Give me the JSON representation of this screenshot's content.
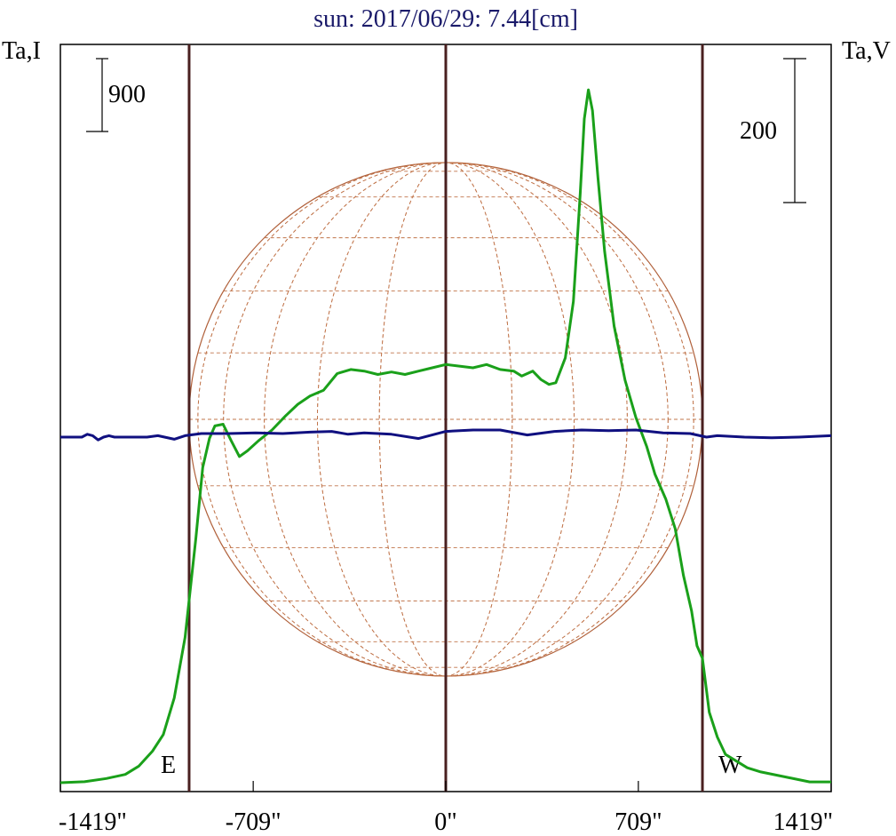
{
  "chart_data": {
    "type": "line",
    "title": "sun: 2017/06/29: 7.44[cm]",
    "ylabel_left": "Ta,I",
    "ylabel_right": "Ta,V",
    "scale_bar_left": "900",
    "scale_bar_right": "200",
    "xlim": [
      -1419,
      1419
    ],
    "x_ticks": [
      {
        "value": -1419,
        "label": "-1419\""
      },
      {
        "value": -709,
        "label": "-709\""
      },
      {
        "value": 0,
        "label": "0\""
      },
      {
        "value": 709,
        "label": "709\""
      },
      {
        "value": 1419,
        "label": "1419\""
      }
    ],
    "limb_markers": [
      {
        "value": -945,
        "label": "E"
      },
      {
        "value": 0,
        "label": ""
      },
      {
        "value": 945,
        "label": "W"
      }
    ],
    "solar_disk_radius_arcsec": 945,
    "series": [
      {
        "role": "intensity",
        "color": "#1aa01a",
        "points": [
          [
            -1419,
            0.0
          ],
          [
            -1330,
            0.012
          ],
          [
            -1250,
            0.05
          ],
          [
            -1180,
            0.1
          ],
          [
            -1130,
            0.2
          ],
          [
            -1080,
            0.38
          ],
          [
            -1040,
            0.58
          ],
          [
            -1000,
            1.02
          ],
          [
            -960,
            1.75
          ],
          [
            -940,
            2.35
          ],
          [
            -920,
            2.95
          ],
          [
            -895,
            3.8
          ],
          [
            -870,
            4.15
          ],
          [
            -850,
            4.3
          ],
          [
            -820,
            4.32
          ],
          [
            -790,
            4.12
          ],
          [
            -760,
            3.93
          ],
          [
            -730,
            4.0
          ],
          [
            -690,
            4.12
          ],
          [
            -640,
            4.25
          ],
          [
            -590,
            4.42
          ],
          [
            -545,
            4.56
          ],
          [
            -500,
            4.66
          ],
          [
            -450,
            4.73
          ],
          [
            -400,
            4.93
          ],
          [
            -350,
            4.98
          ],
          [
            -300,
            4.96
          ],
          [
            -250,
            4.92
          ],
          [
            -200,
            4.95
          ],
          [
            -150,
            4.92
          ],
          [
            -100,
            4.96
          ],
          [
            -50,
            5.0
          ],
          [
            0,
            5.04
          ],
          [
            50,
            5.02
          ],
          [
            100,
            5.0
          ],
          [
            150,
            5.04
          ],
          [
            200,
            4.98
          ],
          [
            250,
            4.96
          ],
          [
            280,
            4.9
          ],
          [
            320,
            4.96
          ],
          [
            350,
            4.86
          ],
          [
            380,
            4.8
          ],
          [
            405,
            4.82
          ],
          [
            440,
            5.12
          ],
          [
            470,
            5.8
          ],
          [
            495,
            7.1
          ],
          [
            510,
            8.0
          ],
          [
            525,
            8.35
          ],
          [
            540,
            8.1
          ],
          [
            560,
            7.3
          ],
          [
            585,
            6.4
          ],
          [
            620,
            5.5
          ],
          [
            660,
            4.85
          ],
          [
            700,
            4.4
          ],
          [
            740,
            4.05
          ],
          [
            770,
            3.72
          ],
          [
            810,
            3.42
          ],
          [
            845,
            3.06
          ],
          [
            875,
            2.5
          ],
          [
            905,
            2.07
          ],
          [
            925,
            1.65
          ],
          [
            945,
            1.5
          ],
          [
            970,
            0.85
          ],
          [
            1000,
            0.55
          ],
          [
            1030,
            0.34
          ],
          [
            1060,
            0.28
          ],
          [
            1110,
            0.18
          ],
          [
            1160,
            0.13
          ],
          [
            1250,
            0.07
          ],
          [
            1340,
            0.01
          ],
          [
            1419,
            0.01
          ]
        ]
      },
      {
        "role": "polarization",
        "color": "#101080",
        "points": [
          [
            -1419,
            0.0
          ],
          [
            -1340,
            0.0
          ],
          [
            -1320,
            0.04
          ],
          [
            -1300,
            0.02
          ],
          [
            -1280,
            -0.04
          ],
          [
            -1260,
            0.0
          ],
          [
            -1240,
            0.02
          ],
          [
            -1220,
            0.0
          ],
          [
            -1100,
            0.0
          ],
          [
            -1060,
            0.02
          ],
          [
            -1000,
            -0.03
          ],
          [
            -960,
            0.02
          ],
          [
            -900,
            0.05
          ],
          [
            -800,
            0.05
          ],
          [
            -700,
            0.06
          ],
          [
            -600,
            0.05
          ],
          [
            -500,
            0.07
          ],
          [
            -420,
            0.08
          ],
          [
            -360,
            0.04
          ],
          [
            -300,
            0.06
          ],
          [
            -200,
            0.04
          ],
          [
            -100,
            -0.02
          ],
          [
            0,
            0.08
          ],
          [
            100,
            0.1
          ],
          [
            200,
            0.1
          ],
          [
            300,
            0.03
          ],
          [
            400,
            0.08
          ],
          [
            500,
            0.1
          ],
          [
            600,
            0.09
          ],
          [
            700,
            0.1
          ],
          [
            800,
            0.06
          ],
          [
            900,
            0.05
          ],
          [
            960,
            0.0
          ],
          [
            1000,
            0.02
          ],
          [
            1100,
            0.0
          ],
          [
            1200,
            -0.01
          ],
          [
            1300,
            0.0
          ],
          [
            1419,
            0.02
          ]
        ]
      }
    ]
  }
}
